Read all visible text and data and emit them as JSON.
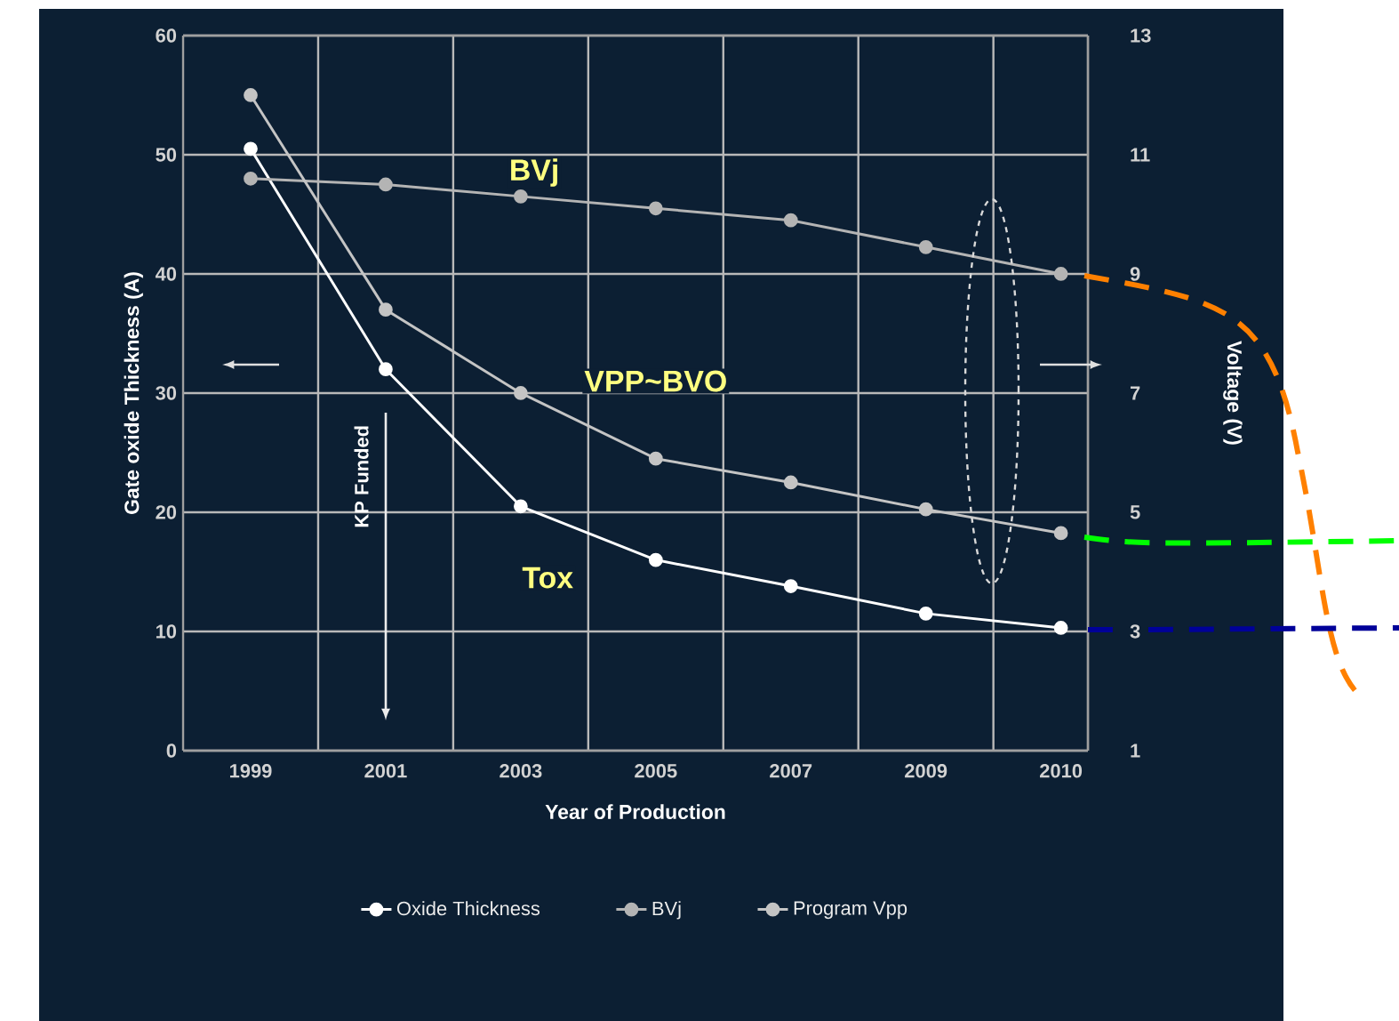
{
  "chart_data": {
    "type": "line",
    "categories": [
      "1999",
      "2001",
      "2003",
      "2005",
      "2007",
      "2009",
      "2010"
    ],
    "xlabel": "Year of Production",
    "ylabel": "Gate oxide Thickness (A)",
    "y2label": "Voltage (V)",
    "ylim": [
      0,
      60
    ],
    "yticks": [
      0,
      10,
      20,
      30,
      40,
      50,
      60
    ],
    "y2lim": [
      1,
      13
    ],
    "y2ticks": [
      1,
      3,
      5,
      7,
      9,
      11,
      13
    ],
    "grid": true,
    "legend": "bottom",
    "marker": "circle",
    "line_style": "solid",
    "series": [
      {
        "name": "Oxide Thickness",
        "color": "#ffffff",
        "values": [
          50.5,
          32,
          20.5,
          16,
          13.8,
          11.5,
          10.3
        ]
      },
      {
        "name": "BVj",
        "color": "#b4b4b4",
        "axis": "y2",
        "values": [
          10.6,
          10.5,
          10.3,
          10.1,
          9.9,
          9.45,
          9.0
        ]
      },
      {
        "name": "Program Vpp",
        "color": "#c4c4c4",
        "axis": "y2",
        "values": [
          12.0,
          8.4,
          7.0,
          5.9,
          5.5,
          5.05,
          4.65
        ]
      }
    ],
    "annotations": [
      "BVj",
      "VPP~BVO",
      "Tox",
      "KP Funded"
    ]
  }
}
